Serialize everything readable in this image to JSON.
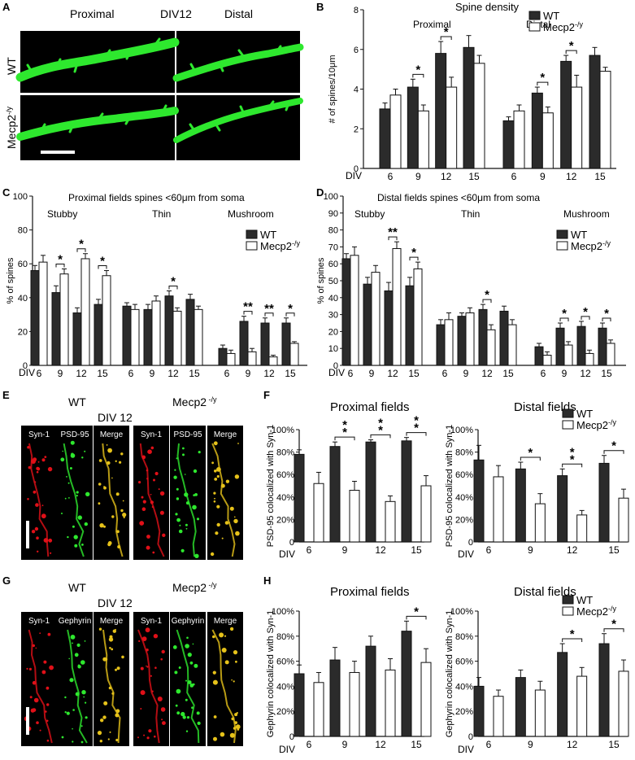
{
  "legend": {
    "wt": "WT",
    "ko": "Mecp2",
    "ko_sup": "-/y"
  },
  "colors": {
    "wt": "#2b2b2b",
    "ko": "#ffffff",
    "stroke": "#111111",
    "green": "#2ee82e",
    "red": "#e01018",
    "yellow": "#e6c21a"
  },
  "micrograph_A": {
    "letter": "A",
    "proximal": "Proximal",
    "div": "DIV12",
    "distal": "Distal",
    "row1": "WT",
    "row2": "Mecp2",
    "row2_sup": "-/y"
  },
  "micrograph_E": {
    "letter": "E",
    "wt": "WT",
    "ko": "Mecp2",
    "ko_sup": " -/y",
    "div": "DIV 12",
    "channels": [
      "Syn-1",
      "PSD-95",
      "Merge",
      "Syn-1",
      "PSD-95",
      "Merge"
    ]
  },
  "micrograph_G": {
    "letter": "G",
    "wt": "WT",
    "ko": "Mecp2",
    "ko_sup": " -/y",
    "div": "DIV 12",
    "channels": [
      "Syn-1",
      "Gephyrin",
      "Merge",
      "Syn-1",
      "Gephyrin",
      "Merge"
    ]
  },
  "chart_data": [
    {
      "id": "B",
      "letter": "B",
      "type": "bar",
      "title": "Spine density",
      "ylabel": "# of spines/10μm",
      "xlabel": "DIV",
      "ylim": [
        0,
        8
      ],
      "yticks": [
        0,
        2,
        4,
        6,
        8
      ],
      "groups": [
        {
          "label": "Proximal",
          "categories": [
            "6",
            "9",
            "12",
            "15"
          ],
          "wt": [
            3.0,
            4.1,
            5.8,
            6.1
          ],
          "wt_err": [
            0.3,
            0.4,
            0.6,
            0.6
          ],
          "ko": [
            3.7,
            2.9,
            4.1,
            5.3
          ],
          "ko_err": [
            0.3,
            0.3,
            0.5,
            0.4
          ],
          "sig": [
            "",
            "*",
            "*",
            ""
          ]
        },
        {
          "label": "Distal",
          "categories": [
            "6",
            "9",
            "12",
            "15"
          ],
          "wt": [
            2.4,
            3.8,
            5.4,
            5.7
          ],
          "wt_err": [
            0.2,
            0.3,
            0.3,
            0.4
          ],
          "ko": [
            2.9,
            2.8,
            4.1,
            4.9
          ],
          "ko_err": [
            0.3,
            0.3,
            0.6,
            0.2
          ],
          "sig": [
            "",
            "*",
            "*",
            ""
          ]
        }
      ]
    },
    {
      "id": "C",
      "letter": "C",
      "type": "bar",
      "title": "Proximal fields  spines <60μm from soma",
      "ylabel": "% of spines",
      "xlabel": "DIV",
      "ylim": [
        0,
        100
      ],
      "yticks": [
        0,
        20,
        40,
        60,
        80,
        100
      ],
      "groups": [
        {
          "label": "Stubby",
          "categories": [
            "6",
            "9",
            "12",
            "15"
          ],
          "wt": [
            56,
            43,
            31,
            36
          ],
          "wt_err": [
            3,
            4,
            3,
            3
          ],
          "ko": [
            61,
            54,
            63,
            53
          ],
          "ko_err": [
            4,
            3,
            3,
            3
          ],
          "sig": [
            "",
            "*",
            "*",
            "*"
          ]
        },
        {
          "label": "Thin",
          "categories": [
            "6",
            "9",
            "12",
            "15"
          ],
          "wt": [
            35,
            33,
            41,
            39
          ],
          "wt_err": [
            2,
            3,
            3,
            3
          ],
          "ko": [
            33,
            38,
            32,
            33
          ],
          "ko_err": [
            3,
            3,
            2,
            2
          ],
          "sig": [
            "",
            "",
            "*",
            ""
          ]
        },
        {
          "label": "Mushroom",
          "categories": [
            "6",
            "9",
            "12",
            "15"
          ],
          "wt": [
            10,
            26,
            25,
            25
          ],
          "wt_err": [
            2,
            3,
            3,
            3
          ],
          "ko": [
            7,
            8,
            5,
            13
          ],
          "ko_err": [
            2,
            2,
            1,
            1
          ],
          "sig": [
            "",
            "**",
            "**",
            "*"
          ]
        }
      ]
    },
    {
      "id": "D",
      "letter": "D",
      "type": "bar",
      "title": "Distal fields  spines <60μm from soma",
      "ylabel": "% of spines",
      "xlabel": "DIV",
      "ylim": [
        0,
        100
      ],
      "yticks": [
        0,
        10,
        20,
        30,
        40,
        50,
        60,
        70,
        80,
        90,
        100
      ],
      "groups": [
        {
          "label": "Stubby",
          "categories": [
            "6",
            "9",
            "12",
            "15"
          ],
          "wt": [
            63,
            48,
            44,
            47
          ],
          "wt_err": [
            3,
            4,
            5,
            5
          ],
          "ko": [
            65,
            55,
            69,
            57
          ],
          "ko_err": [
            5,
            4,
            4,
            4
          ],
          "sig": [
            "",
            "",
            "**",
            "*"
          ]
        },
        {
          "label": "Thin",
          "categories": [
            "6",
            "9",
            "12",
            "15"
          ],
          "wt": [
            24,
            29,
            33,
            32
          ],
          "wt_err": [
            3,
            2,
            3,
            3
          ],
          "ko": [
            27,
            31,
            21,
            24
          ],
          "ko_err": [
            4,
            3,
            3,
            3
          ],
          "sig": [
            "",
            "",
            "*",
            ""
          ]
        },
        {
          "label": "Mushroom",
          "categories": [
            "6",
            "9",
            "12",
            "15"
          ],
          "wt": [
            11,
            22,
            23,
            22
          ],
          "wt_err": [
            2,
            3,
            3,
            3
          ],
          "ko": [
            6,
            12,
            7,
            13
          ],
          "ko_err": [
            2,
            2,
            2,
            2
          ],
          "sig": [
            "",
            "*",
            "*",
            "*"
          ]
        }
      ]
    },
    {
      "id": "F1",
      "letter": "F",
      "type": "bar",
      "title": "Proximal fields",
      "ylabel": "PSD-95 colocalized with Syn-1",
      "xlabel": "DIV",
      "ylim": [
        0,
        100
      ],
      "yticks": [
        "0",
        "20%",
        "40%",
        "60%",
        "80%",
        "100%"
      ],
      "ytick_values": [
        0,
        20,
        40,
        60,
        80,
        100
      ],
      "groups": [
        {
          "label": "",
          "categories": [
            "6",
            "9",
            "12",
            "15"
          ],
          "wt": [
            78,
            85,
            89,
            90
          ],
          "wt_err": [
            4,
            4,
            2,
            3
          ],
          "ko": [
            52,
            46,
            36,
            50
          ],
          "ko_err": [
            10,
            8,
            5,
            9
          ],
          "sig": [
            "",
            "**",
            "**",
            "**"
          ]
        }
      ]
    },
    {
      "id": "F2",
      "letter": "",
      "type": "bar",
      "title": "Distal fields",
      "ylabel": "PSD-95 colocalized with Syn-1",
      "xlabel": "DIV",
      "ylim": [
        0,
        100
      ],
      "yticks": [
        "0",
        "20%",
        "40%",
        "60%",
        "80%",
        "100%"
      ],
      "ytick_values": [
        0,
        20,
        40,
        60,
        80,
        100
      ],
      "groups": [
        {
          "label": "",
          "categories": [
            "6",
            "9",
            "12",
            "15"
          ],
          "wt": [
            73,
            65,
            59,
            70
          ],
          "wt_err": [
            13,
            6,
            6,
            7
          ],
          "ko": [
            58,
            34,
            24,
            39
          ],
          "ko_err": [
            10,
            9,
            4,
            8
          ],
          "sig": [
            "",
            "*",
            "**",
            "*"
          ]
        }
      ]
    },
    {
      "id": "H1",
      "letter": "H",
      "type": "bar",
      "title": "Proximal fields",
      "ylabel": "Gephyrin colocalized with Syn-1",
      "xlabel": "DIV",
      "ylim": [
        0,
        100
      ],
      "yticks": [
        "0",
        "20%",
        "40%",
        "60%",
        "80%",
        "100%"
      ],
      "ytick_values": [
        0,
        20,
        40,
        60,
        80,
        100
      ],
      "groups": [
        {
          "label": "",
          "categories": [
            "6",
            "9",
            "12",
            "15"
          ],
          "wt": [
            50,
            61,
            72,
            84
          ],
          "wt_err": [
            7,
            10,
            8,
            8
          ],
          "ko": [
            43,
            51,
            53,
            59
          ],
          "ko_err": [
            8,
            9,
            9,
            11
          ],
          "sig": [
            "",
            "",
            "",
            "*"
          ]
        }
      ]
    },
    {
      "id": "H2",
      "letter": "",
      "type": "bar",
      "title": "Distal fields",
      "ylabel": "Gephyrin colocalized with Syn-1",
      "xlabel": "DIV",
      "ylim": [
        0,
        100
      ],
      "yticks": [
        "0",
        "20%",
        "40%",
        "60%",
        "80%",
        "100%"
      ],
      "ytick_values": [
        0,
        20,
        40,
        60,
        80,
        100
      ],
      "groups": [
        {
          "label": "",
          "categories": [
            "6",
            "9",
            "12",
            "15"
          ],
          "wt": [
            40,
            47,
            67,
            74
          ],
          "wt_err": [
            7,
            6,
            7,
            8
          ],
          "ko": [
            32,
            37,
            48,
            52
          ],
          "ko_err": [
            5,
            7,
            7,
            9
          ],
          "sig": [
            "",
            "",
            "*",
            "*"
          ]
        }
      ]
    }
  ]
}
